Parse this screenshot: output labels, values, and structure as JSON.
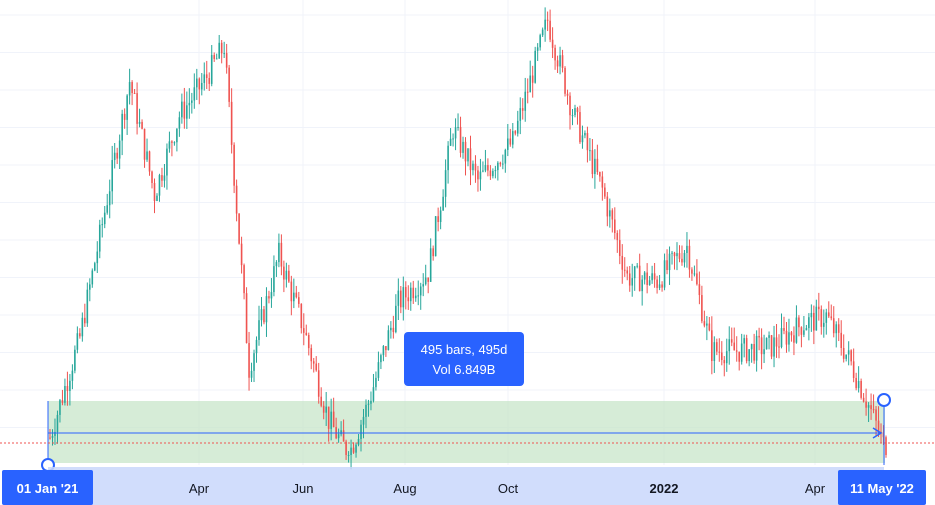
{
  "chart_data": {
    "type": "candlestick",
    "x_ticks": [
      {
        "label": "Apr",
        "bold": false
      },
      {
        "label": "Jun",
        "bold": false
      },
      {
        "label": "Aug",
        "bold": false
      },
      {
        "label": "Oct",
        "bold": false
      },
      {
        "label": "2022",
        "bold": true
      },
      {
        "label": "Apr",
        "bold": false
      }
    ],
    "range_start_label": "01 Jan '21",
    "range_end_label": "11 May '22",
    "measure": {
      "bars_text": "495 bars, 495d",
      "volume_text": "Vol 6.849B"
    },
    "colors": {
      "up": "#26a69a",
      "down": "#ef5350",
      "range_fill": "#c8e6c9",
      "measure": "#2962ff",
      "axis_highlight": "#c9d7fb",
      "price_line": "#ef5350"
    },
    "grid": true,
    "price_trend_relative": [
      [
        0,
        0.04
      ],
      [
        12,
        0.27
      ],
      [
        22,
        0.56
      ],
      [
        32,
        0.86
      ],
      [
        42,
        0.6
      ],
      [
        52,
        0.78
      ],
      [
        62,
        0.86
      ],
      [
        70,
        0.94
      ],
      [
        80,
        0.2
      ],
      [
        92,
        0.46
      ],
      [
        102,
        0.29
      ],
      [
        112,
        0.08
      ],
      [
        120,
        0.0
      ],
      [
        128,
        0.12
      ],
      [
        140,
        0.35
      ],
      [
        152,
        0.42
      ],
      [
        162,
        0.75
      ],
      [
        172,
        0.63
      ],
      [
        186,
        0.72
      ],
      [
        200,
        1.0
      ],
      [
        210,
        0.79
      ],
      [
        222,
        0.61
      ],
      [
        232,
        0.41
      ],
      [
        244,
        0.4
      ],
      [
        256,
        0.48
      ],
      [
        266,
        0.24
      ],
      [
        278,
        0.24
      ],
      [
        290,
        0.25
      ],
      [
        302,
        0.3
      ],
      [
        312,
        0.32
      ],
      [
        322,
        0.21
      ],
      [
        330,
        0.1
      ],
      [
        336,
        0.01
      ]
    ]
  }
}
